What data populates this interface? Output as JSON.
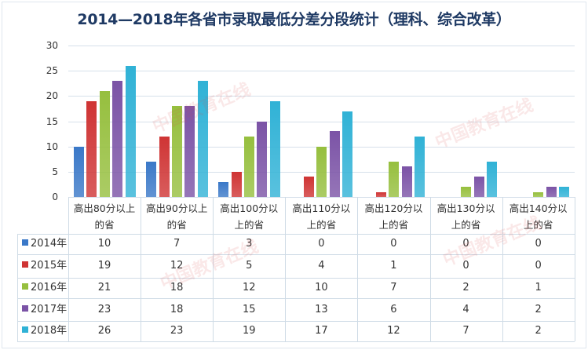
{
  "chart_data": {
    "type": "bar",
    "title": "2014—2018年各省市录取最低分差分段统计（理科、综合改革）",
    "categories": [
      "高出80分以上的省",
      "高出90分以上的省",
      "高出100分以上的省",
      "高出110分以上的省",
      "高出120分以上的省",
      "高出130分以上的省",
      "高出140分以上的省"
    ],
    "series": [
      {
        "name": "2014年",
        "color": "#3a78c8",
        "values": [
          10,
          7,
          3,
          0,
          0,
          0,
          0
        ]
      },
      {
        "name": "2015年",
        "color": "#cf3434",
        "values": [
          19,
          12,
          5,
          4,
          1,
          0,
          0
        ]
      },
      {
        "name": "2016年",
        "color": "#96bf3e",
        "values": [
          21,
          18,
          12,
          10,
          7,
          2,
          1
        ]
      },
      {
        "name": "2017年",
        "color": "#7b53a6",
        "values": [
          23,
          18,
          15,
          13,
          6,
          4,
          2
        ]
      },
      {
        "name": "2018年",
        "color": "#30b2d6",
        "values": [
          26,
          23,
          19,
          17,
          12,
          7,
          2
        ]
      }
    ],
    "xlabel": "",
    "ylabel": "",
    "ylim": [
      0,
      30
    ],
    "yticks": [
      0,
      5,
      10,
      15,
      20,
      25,
      30
    ],
    "grid": true,
    "legend_position": "data-table"
  },
  "header_lines": [
    [
      "高出80分以上",
      "的省"
    ],
    [
      "高出90分以上",
      "的省"
    ],
    [
      "高出100分以",
      "上的省"
    ],
    [
      "高出110分以",
      "上的省"
    ],
    [
      "高出120分以",
      "上的省"
    ],
    [
      "高出130分以",
      "上的省"
    ],
    [
      "高出140分以",
      "上的省"
    ]
  ],
  "watermark": {
    "text": "中国教育在线",
    "sub": "www.eol.cn",
    "logo": "eol"
  }
}
